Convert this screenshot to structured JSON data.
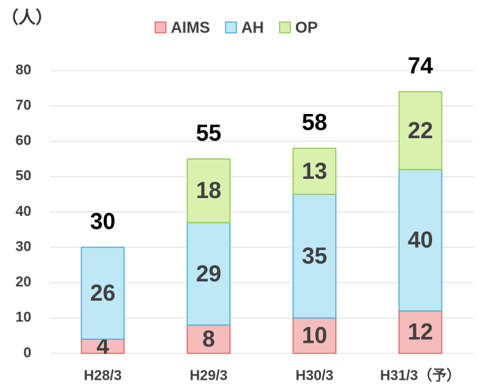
{
  "chart_data": {
    "type": "stacked_bar",
    "y_unit_label": "（人）",
    "categories": [
      "H28/3",
      "H29/3",
      "H30/3",
      "H31/3（予）"
    ],
    "series": [
      {
        "name": "AIMS",
        "color": "#f6bcbc",
        "border": "#e06666",
        "values": [
          4,
          8,
          10,
          12
        ]
      },
      {
        "name": "AH",
        "color": "#bfe8f7",
        "border": "#4aaed6",
        "values": [
          26,
          29,
          35,
          40
        ]
      },
      {
        "name": "OP",
        "color": "#daf1ae",
        "border": "#92c84e",
        "values": [
          null,
          18,
          13,
          22
        ]
      }
    ],
    "totals": [
      30,
      55,
      58,
      74
    ],
    "ylim": [
      0,
      80
    ],
    "yticks": [
      0,
      10,
      20,
      30,
      40,
      50,
      60,
      70,
      80
    ],
    "grid": true,
    "legend": "top"
  }
}
